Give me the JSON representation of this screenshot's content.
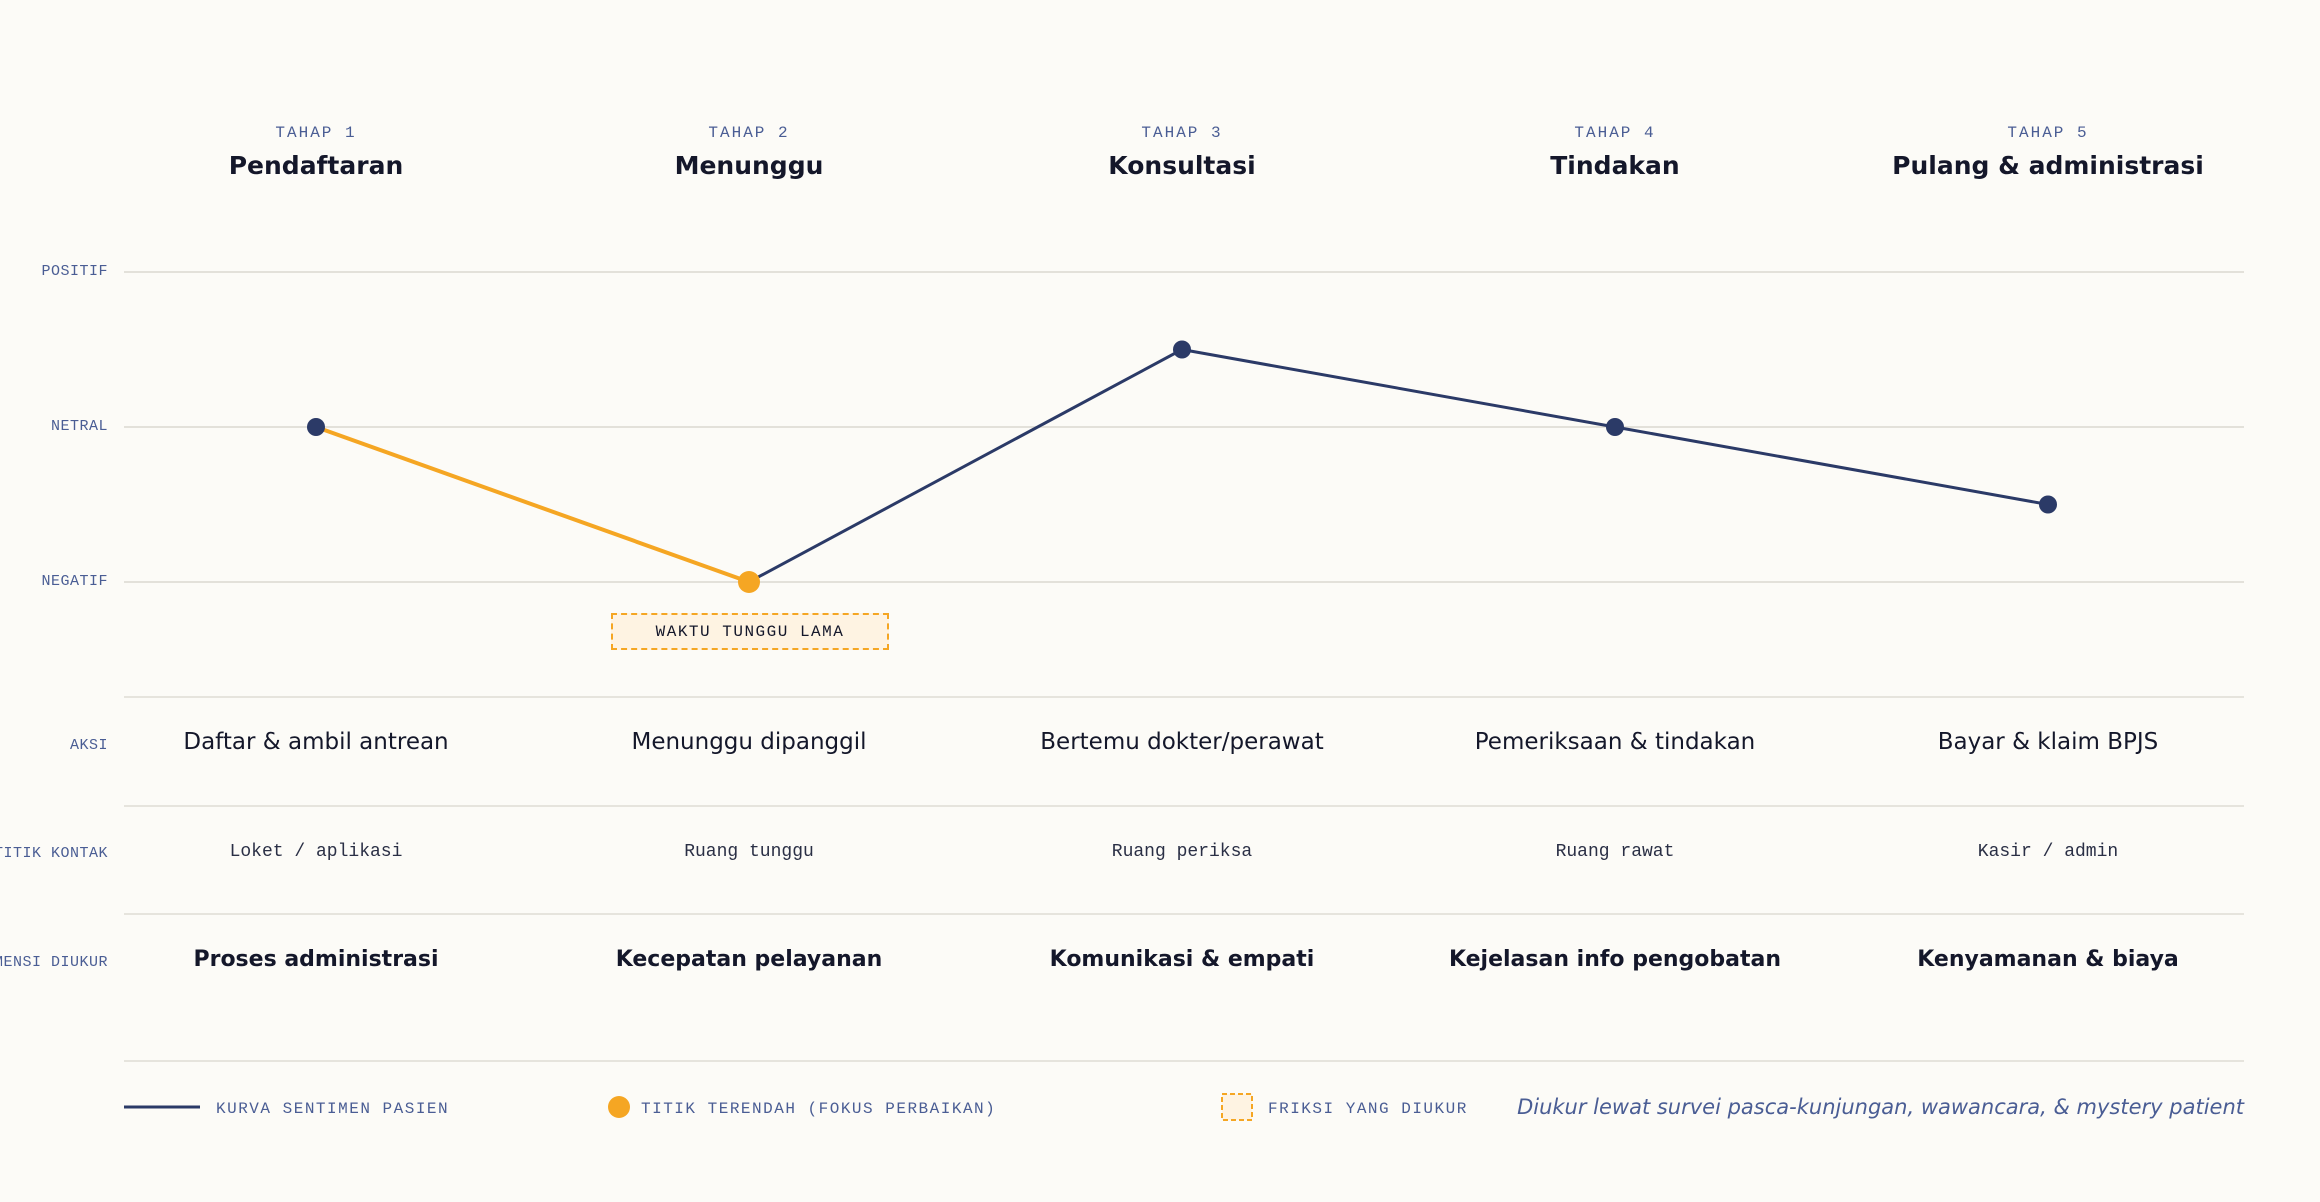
{
  "colors": {
    "background": "#fcfbf7",
    "curve": "#2b3a67",
    "lowest_point": "#f5a623",
    "friction_fill": "#fef3e2",
    "label_blue": "#4a5d94"
  },
  "stages": [
    {
      "num": "TAHAP 1",
      "name": "Pendaftaran"
    },
    {
      "num": "TAHAP 2",
      "name": "Menunggu"
    },
    {
      "num": "TAHAP 3",
      "name": "Konsultasi"
    },
    {
      "num": "TAHAP 4",
      "name": "Tindakan"
    },
    {
      "num": "TAHAP 5",
      "name": "Pulang & administrasi"
    }
  ],
  "sentiment_levels": [
    "POSITIF",
    "NETRAL",
    "NEGATIF"
  ],
  "chart_data": {
    "type": "line",
    "categories": [
      "Pendaftaran",
      "Menunggu",
      "Konsultasi",
      "Tindakan",
      "Pulang & administrasi"
    ],
    "values": [
      0,
      -1,
      0.5,
      0,
      -0.5
    ],
    "ylim": [
      -1,
      1
    ],
    "ytick_labels": [
      "NEGATIF",
      "NETRAL",
      "POSITIF"
    ],
    "lowest_index": 1,
    "annotation": {
      "index": 1,
      "text": "WAKTU TUNGGU LAMA"
    }
  },
  "rows": {
    "aksi": {
      "label": "AKSI",
      "cells": [
        "Daftar & ambil antrean",
        "Menunggu dipanggil",
        "Bertemu dokter/perawat",
        "Pemeriksaan & tindakan",
        "Bayar & klaim BPJS"
      ]
    },
    "titik_kontak": {
      "label": "TITIK KONTAK",
      "cells": [
        "Loket / aplikasi",
        "Ruang tunggu",
        "Ruang periksa",
        "Ruang rawat",
        "Kasir / admin"
      ]
    },
    "dimensi": {
      "label": "DIMENSI DIUKUR",
      "cells": [
        "Proses administrasi",
        "Kecepatan pelayanan",
        "Komunikasi & empati",
        "Kejelasan info pengobatan",
        "Kenyamanan & biaya"
      ]
    }
  },
  "legend": {
    "curve": "KURVA SENTIMEN PASIEN",
    "lowest": "TITIK TERENDAH (FOKUS PERBAIKAN)",
    "friction": "FRIKSI YANG DIUKUR",
    "note": "Diukur lewat survei pasca-kunjungan, wawancara, & mystery patient"
  }
}
